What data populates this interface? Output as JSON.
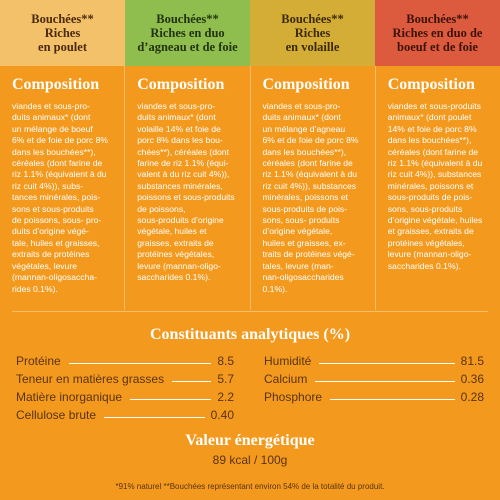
{
  "headers": [
    "Bouchées**\nRiches\nen poulet",
    "Bouchées**\nRiches en duo\nd’agneau et de foie",
    "Bouchées**\nRiches\nen volaille",
    "Bouchées**\nRiches en duo de\nboeuf et de foie"
  ],
  "composition_title": "Composition",
  "compositions": [
    "viandes et sous-pro-\nduits animaux* (dont\nun mélange de boeuf\n6% et de foie de porc 8%\ndans les bouchées**),\ncéréales (dont farine de\nriz 1.1% (équivalent à du\nriz cuit 4%)), subs-\ntances minérales, pois-\nsons et sous-produits\nde poissons, sous- pro-\nduits d’origine végé-\ntale, huiles et graisses,\nextraits de protéines\nvégétales, levure\n(mannan-oligosaccha-\nrides 0.1%).",
    "viandes et sous-pro-\nduits animaux* (dont\nvolaille 14% et foie de\nporc 8% dans les bou-\nchées**), céréales (dont\nfarine de riz 1.1% (équi-\nvalent à du riz cuit 4%)),\nsubstances minérales,\npoissons et sous-produits\nde poissons,\nsous-produits d’origine\nvégétale, huiles et\ngraisses, extraits de\nprotéines végétales,\nlevure (mannan-oligo-\nsaccharides 0.1%).",
    "viandes et sous-pro-\nduits animaux* (dont\nun mélange d’agneau\n6% et de foie de porc 8%\ndans les bouchées**),\ncéréales (dont farine de\nriz 1.1% (équivalent à du\nriz cuit 4%)), substances\nminérales, poissons et\nsous-produits de pois-\nsons, sous- produits\nd’origine végétale,\nhuiles et graisses, ex-\ntraits de protéines végé-\ntales, levure (man-\nnan-oligosaccharides\n0.1%).",
    "viandes et sous-produits\nanimaux* (dont poulet\n14% et foie de porc 8%\ndans les bouchées**),\ncéréales (dont farine de\nriz 1.1% (équivalent à du\nriz cuit 4%)), substances\nminérales, poissons et\nsous-produits de pois-\nsons, sous-produits\nd’origine végétale, huiles\net graisses, extraits de\nprotéines végétales,\nlevure (mannan-oligo-\nsaccharides 0.1%)."
  ],
  "analytics": {
    "title": "Constituants analytiques (%)",
    "left": [
      {
        "label": "Protéine",
        "value": "8.5"
      },
      {
        "label": "Teneur en matières grasses",
        "value": "5.7"
      },
      {
        "label": "Matière inorganique",
        "value": "2.2"
      },
      {
        "label": "Cellulose brute",
        "value": "0.40"
      }
    ],
    "right": [
      {
        "label": "Humidité",
        "value": "81.5"
      },
      {
        "label": "Calcium",
        "value": "0.36"
      },
      {
        "label": "Phosphore",
        "value": "0.28"
      }
    ]
  },
  "energy": {
    "title": "Valeur énergétique",
    "value": "89 kcal / 100g"
  },
  "footnote": "*91% naturel  **Bouchées représentant environ 54% de la totalité du produit."
}
